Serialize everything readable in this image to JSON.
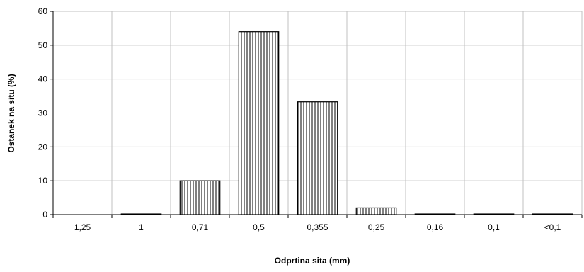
{
  "chart_data": {
    "type": "bar",
    "title": "",
    "xlabel": "Odprtina sita  (mm)",
    "ylabel": "Ostanek na situ  (%)",
    "categories": [
      "1,25",
      "1",
      "0,71",
      "0,5",
      "0,355",
      "0,25",
      "0,16",
      "0,1",
      "<0,1"
    ],
    "values": [
      0,
      0.2,
      10,
      54,
      33.3,
      2,
      0.2,
      0.2,
      0.2
    ],
    "ylim": [
      0,
      60
    ],
    "yticks": [
      0,
      10,
      20,
      30,
      40,
      50,
      60
    ],
    "grid": true,
    "legend": "none",
    "bar_fill": "vertical-hatch",
    "colors": {
      "bar_stroke": "#000000",
      "grid": "#c0c0c0",
      "axis": "#000000"
    }
  }
}
